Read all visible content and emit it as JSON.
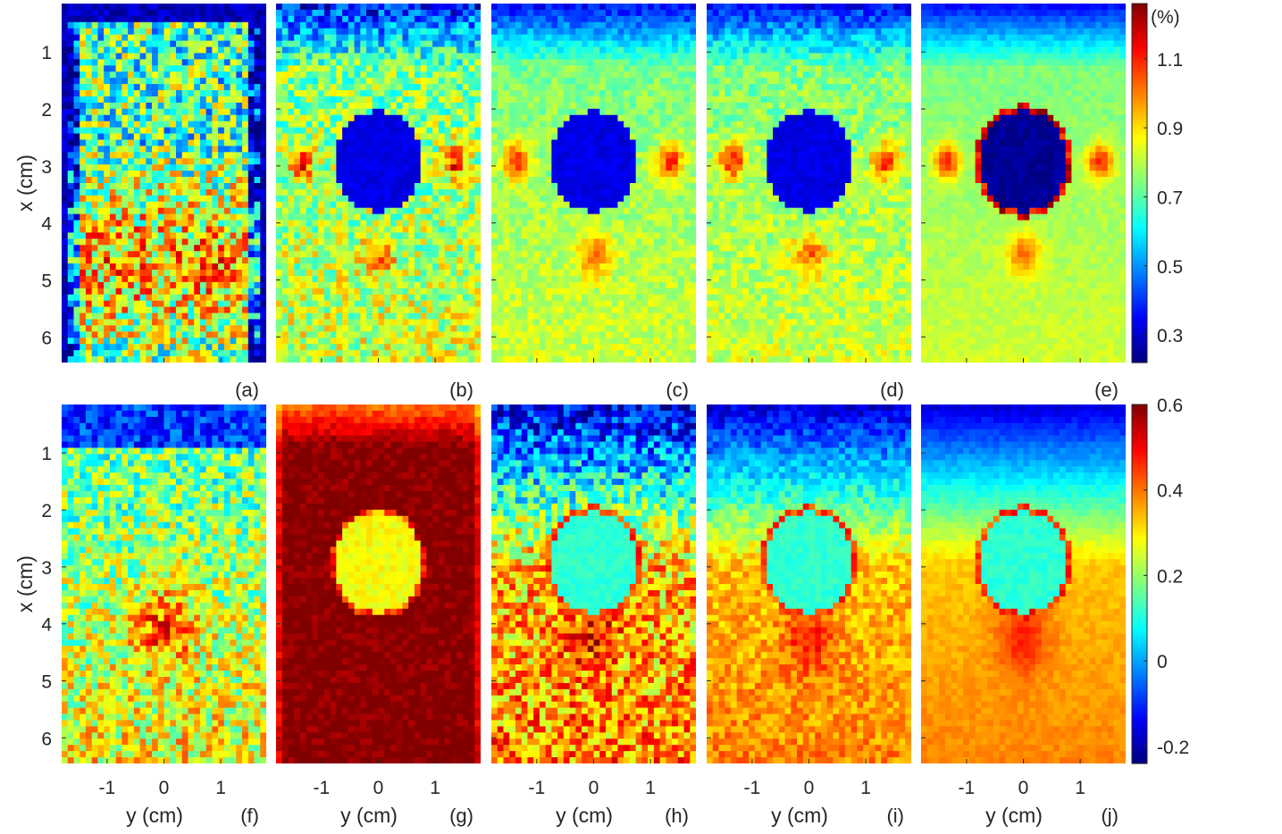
{
  "chart_data": [
    {
      "type": "heatmap",
      "title": "",
      "xlabel": "",
      "ylabel": "x (cm)",
      "ylabel_row2": "x (cm)",
      "colorbar_unit": "(%)",
      "row1_colorbar_ticks": [
        1.1,
        0.9,
        0.7,
        0.5,
        0.3
      ],
      "row1_clim": [
        0.22,
        1.26
      ],
      "row2_colorbar_ticks": [
        0.6,
        0.4,
        0.2,
        0,
        -0.2
      ],
      "row2_clim": [
        -0.24,
        0.6
      ],
      "y_ticks": [
        -1,
        0,
        1
      ],
      "y_tick_labels": [
        "-1",
        "0",
        "1"
      ],
      "ylim": [
        -1.8,
        1.8
      ],
      "x_ticks": [
        1,
        2,
        3,
        4,
        5,
        6
      ],
      "x_tick_labels": [
        "1",
        "2",
        "3",
        "4",
        "5",
        "6"
      ],
      "xlim": [
        0.15,
        6.45
      ],
      "bottom_xlabel": "y (cm)",
      "panels": [
        {
          "label": "(a)",
          "row": 1,
          "col": 0
        },
        {
          "label": "(b)",
          "row": 1,
          "col": 1
        },
        {
          "label": "(c)",
          "row": 1,
          "col": 2
        },
        {
          "label": "(d)",
          "row": 1,
          "col": 3
        },
        {
          "label": "(e)",
          "row": 1,
          "col": 4
        },
        {
          "label": "(f)",
          "row": 2,
          "col": 0
        },
        {
          "label": "(g)",
          "row": 2,
          "col": 1
        },
        {
          "label": "(h)",
          "row": 2,
          "col": 2
        },
        {
          "label": "(i)",
          "row": 2,
          "col": 3
        },
        {
          "label": "(j)",
          "row": 2,
          "col": 4
        }
      ],
      "colormap": "jet"
    }
  ]
}
